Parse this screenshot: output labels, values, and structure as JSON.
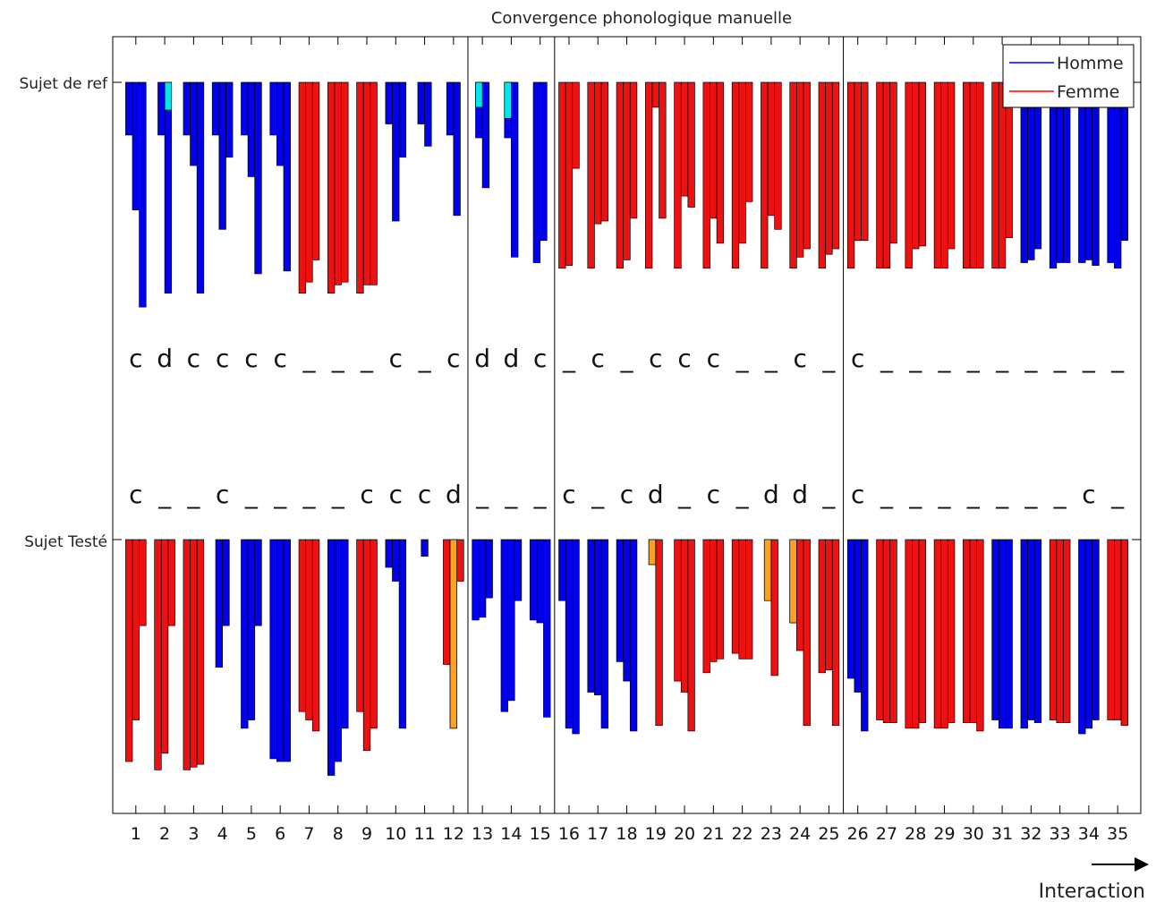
{
  "chart_data": {
    "type": "bar",
    "title": "Convergence phonologique manuelle",
    "ylabels": [
      "Sujet de ref",
      "Sujet Testé"
    ],
    "xlabel": "Interaction",
    "xlim": [
      0.2,
      35.8
    ],
    "categories": [
      "1",
      "2",
      "3",
      "4",
      "5",
      "6",
      "7",
      "8",
      "9",
      "10",
      "11",
      "12",
      "13",
      "14",
      "15",
      "16",
      "17",
      "18",
      "19",
      "20",
      "21",
      "22",
      "23",
      "24",
      "25",
      "26",
      "27",
      "28",
      "29",
      "30",
      "31",
      "32",
      "33",
      "34",
      "35"
    ],
    "section_dividers_after": [
      12,
      15,
      25
    ],
    "legend": {
      "placement": "top-right",
      "entries": [
        {
          "name": "Homme",
          "color": "#0000ff"
        },
        {
          "name": "Femme",
          "color": "#ff0000"
        }
      ]
    },
    "colors": {
      "homme": "#0000ee",
      "femme": "#ee1111",
      "ref_highlight": "#00e5ee",
      "test_highlight": "#ffa020"
    },
    "ref_markers": [
      "c",
      "d",
      "c",
      "c",
      "c",
      "c",
      "_",
      "_",
      "_",
      "c",
      "_",
      "c",
      "d",
      "d",
      "c",
      "_",
      "c",
      "_",
      "c",
      "c",
      "c",
      "_",
      "_",
      "c",
      "_",
      "c",
      "_",
      "_",
      "_",
      "_",
      "_",
      "_",
      "_",
      "_",
      "_"
    ],
    "test_markers": [
      "c",
      "_",
      "_",
      "c",
      "_",
      "_",
      "_",
      "_",
      "c",
      "c",
      "c",
      "d",
      "_",
      "_",
      "_",
      "c",
      "_",
      "c",
      "d",
      "_",
      "c",
      "_",
      "d",
      "d",
      "_",
      "c",
      "_",
      "_",
      "_",
      "_",
      "_",
      "_",
      "_",
      "c",
      "_"
    ],
    "ref_series": [
      {
        "g": "H",
        "v": [
          0.19,
          0.46,
          0.81
        ]
      },
      {
        "g": "H",
        "v": [
          0.19,
          0.76
        ],
        "hl": [
          1,
          0.1
        ]
      },
      {
        "g": "H",
        "v": [
          0.19,
          0.3,
          0.76
        ]
      },
      {
        "g": "H",
        "v": [
          0.19,
          0.53,
          0.27
        ]
      },
      {
        "g": "H",
        "v": [
          0.19,
          0.34,
          0.69
        ]
      },
      {
        "g": "H",
        "v": [
          0.19,
          0.3,
          0.68
        ]
      },
      {
        "g": "F",
        "v": [
          0.76,
          0.72,
          0.64
        ]
      },
      {
        "g": "F",
        "v": [
          0.76,
          0.73,
          0.72
        ]
      },
      {
        "g": "F",
        "v": [
          0.76,
          0.73,
          0.73
        ]
      },
      {
        "g": "H",
        "v": [
          0.15,
          0.5,
          0.27
        ]
      },
      {
        "g": "H",
        "v": [
          0.15,
          0.23
        ]
      },
      {
        "g": "H",
        "v": [
          0.19,
          0.48
        ]
      },
      {
        "g": "H",
        "v": [
          0.2,
          0.38
        ],
        "hl": [
          0,
          0.09
        ]
      },
      {
        "g": "H",
        "v": [
          0.2,
          0.63
        ],
        "hl": [
          0,
          0.13
        ]
      },
      {
        "g": "H",
        "v": [
          0.65,
          0.57
        ]
      },
      {
        "g": "F",
        "v": [
          0.67,
          0.66,
          0.31
        ]
      },
      {
        "g": "F",
        "v": [
          0.67,
          0.51,
          0.5
        ]
      },
      {
        "g": "F",
        "v": [
          0.67,
          0.64,
          0.49
        ]
      },
      {
        "g": "F",
        "v": [
          0.67,
          0.09,
          0.49
        ]
      },
      {
        "g": "F",
        "v": [
          0.67,
          0.41,
          0.45
        ]
      },
      {
        "g": "F",
        "v": [
          0.67,
          0.49,
          0.58
        ]
      },
      {
        "g": "F",
        "v": [
          0.67,
          0.58,
          0.43
        ]
      },
      {
        "g": "F",
        "v": [
          0.67,
          0.48,
          0.53
        ]
      },
      {
        "g": "F",
        "v": [
          0.67,
          0.63,
          0.6
        ]
      },
      {
        "g": "F",
        "v": [
          0.67,
          0.62,
          0.6
        ]
      },
      {
        "g": "F",
        "v": [
          0.67,
          0.57,
          0.57
        ]
      },
      {
        "g": "F",
        "v": [
          0.67,
          0.67,
          0.58
        ]
      },
      {
        "g": "F",
        "v": [
          0.67,
          0.6,
          0.59
        ]
      },
      {
        "g": "F",
        "v": [
          0.67,
          0.67,
          0.6
        ]
      },
      {
        "g": "F",
        "v": [
          0.67,
          0.67,
          0.67
        ]
      },
      {
        "g": "F",
        "v": [
          0.67,
          0.67,
          0.56
        ]
      },
      {
        "g": "H",
        "v": [
          0.65,
          0.64,
          0.6
        ]
      },
      {
        "g": "H",
        "v": [
          0.67,
          0.65,
          0.65
        ]
      },
      {
        "g": "H",
        "v": [
          0.65,
          0.64,
          0.66
        ]
      },
      {
        "g": "H",
        "v": [
          0.65,
          0.67,
          0.57
        ]
      }
    ],
    "test_series": [
      {
        "g": "F",
        "v": [
          0.8,
          0.65,
          0.31
        ]
      },
      {
        "g": "F",
        "v": [
          0.83,
          0.77,
          0.31
        ]
      },
      {
        "g": "F",
        "v": [
          0.83,
          0.82,
          0.81
        ]
      },
      {
        "g": "H",
        "v": [
          0.46,
          0.31
        ]
      },
      {
        "g": "H",
        "v": [
          0.68,
          0.65,
          0.31
        ]
      },
      {
        "g": "H",
        "v": [
          0.79,
          0.8,
          0.8
        ]
      },
      {
        "g": "F",
        "v": [
          0.62,
          0.65,
          0.69
        ]
      },
      {
        "g": "H",
        "v": [
          0.85,
          0.8,
          0.68
        ]
      },
      {
        "g": "F",
        "v": [
          0.62,
          0.76,
          0.68
        ]
      },
      {
        "g": "H",
        "v": [
          0.1,
          0.15,
          0.68
        ]
      },
      {
        "g": "H",
        "v": [
          0.06
        ]
      },
      {
        "g": "F",
        "v": [
          0.45,
          0.68,
          0.15
        ],
        "hl": [
          1,
          0.68
        ]
      },
      {
        "g": "H",
        "v": [
          0.29,
          0.28,
          0.21
        ]
      },
      {
        "g": "H",
        "v": [
          0.62,
          0.58,
          0.22
        ]
      },
      {
        "g": "H",
        "v": [
          0.29,
          0.3,
          0.64
        ]
      },
      {
        "g": "H",
        "v": [
          0.22,
          0.68,
          0.7
        ]
      },
      {
        "g": "H",
        "v": [
          0.55,
          0.56,
          0.68
        ]
      },
      {
        "g": "H",
        "v": [
          0.44,
          0.51,
          0.69
        ]
      },
      {
        "g": "F",
        "v": [
          0.09,
          0.67
        ],
        "hl": [
          0,
          0.09
        ]
      },
      {
        "g": "F",
        "v": [
          0.51,
          0.55,
          0.69
        ]
      },
      {
        "g": "F",
        "v": [
          0.48,
          0.44,
          0.43
        ]
      },
      {
        "g": "F",
        "v": [
          0.41,
          0.43,
          0.43
        ]
      },
      {
        "g": "F",
        "v": [
          0.22,
          0.49
        ],
        "hl": [
          0,
          0.22
        ]
      },
      {
        "g": "F",
        "v": [
          0.3,
          0.4,
          0.67
        ],
        "hl": [
          0,
          0.3
        ]
      },
      {
        "g": "F",
        "v": [
          0.48,
          0.47,
          0.67
        ]
      },
      {
        "g": "H",
        "v": [
          0.5,
          0.55,
          0.69
        ]
      },
      {
        "g": "F",
        "v": [
          0.65,
          0.66,
          0.66
        ]
      },
      {
        "g": "F",
        "v": [
          0.68,
          0.68,
          0.66
        ]
      },
      {
        "g": "F",
        "v": [
          0.68,
          0.68,
          0.66
        ]
      },
      {
        "g": "F",
        "v": [
          0.66,
          0.66,
          0.69
        ]
      },
      {
        "g": "H",
        "v": [
          0.65,
          0.68,
          0.68
        ]
      },
      {
        "g": "H",
        "v": [
          0.68,
          0.65,
          0.66
        ]
      },
      {
        "g": "F",
        "v": [
          0.65,
          0.66,
          0.66
        ]
      },
      {
        "g": "H",
        "v": [
          0.7,
          0.68,
          0.65
        ]
      },
      {
        "g": "F",
        "v": [
          0.65,
          0.65,
          0.67
        ]
      }
    ]
  }
}
